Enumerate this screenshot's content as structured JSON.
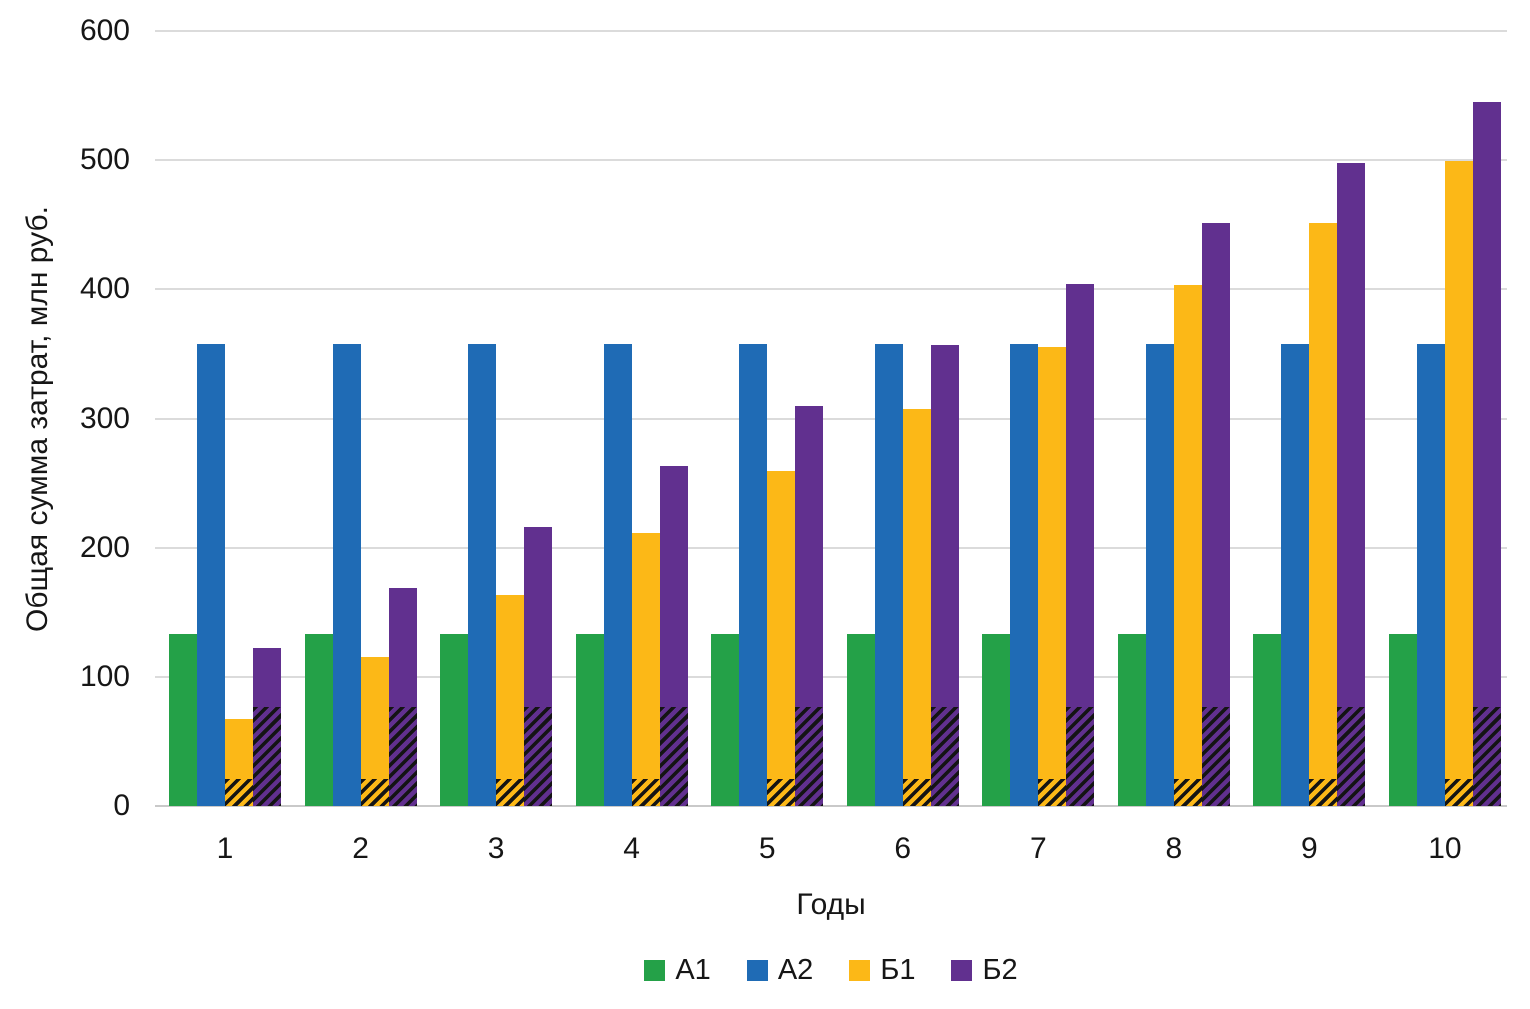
{
  "chart_data": {
    "type": "bar",
    "title": "",
    "xlabel": "Годы",
    "ylabel": "Общая сумма затрат, млн руб.",
    "categories": [
      "1",
      "2",
      "3",
      "4",
      "5",
      "6",
      "7",
      "8",
      "9",
      "10"
    ],
    "y_ticks": [
      0,
      100,
      200,
      300,
      400,
      500,
      600
    ],
    "ylim": [
      0,
      600
    ],
    "grid": true,
    "legend_position": "bottom",
    "series": [
      {
        "key": "a1",
        "name": "А1",
        "color": "#24A148",
        "values": [
          133,
          133,
          133,
          133,
          133,
          133,
          133,
          133,
          133,
          133
        ],
        "hatched_base": 0
      },
      {
        "key": "a2",
        "name": "А2",
        "color": "#1F6BB5",
        "values": [
          358,
          358,
          358,
          358,
          358,
          358,
          358,
          358,
          358,
          358
        ],
        "hatched_base": 0
      },
      {
        "key": "b1",
        "name": "Б1",
        "color": "#FCB817",
        "values": [
          67,
          115,
          163,
          211,
          259,
          307,
          355,
          403,
          451,
          499
        ],
        "hatched_base": 21
      },
      {
        "key": "b2",
        "name": "Б2",
        "color": "#61308F",
        "values": [
          122,
          169,
          216,
          263,
          310,
          357,
          404,
          451,
          498,
          545
        ],
        "hatched_base": 77
      }
    ],
    "hatch_note": "lower segment of Б1 and Б2 bars carries black diagonal hatching",
    "colors": {
      "gridline": "#DBDBDB",
      "baseline": "#C9C9C9",
      "text": "#161616",
      "background": "#FFFFFF"
    }
  }
}
